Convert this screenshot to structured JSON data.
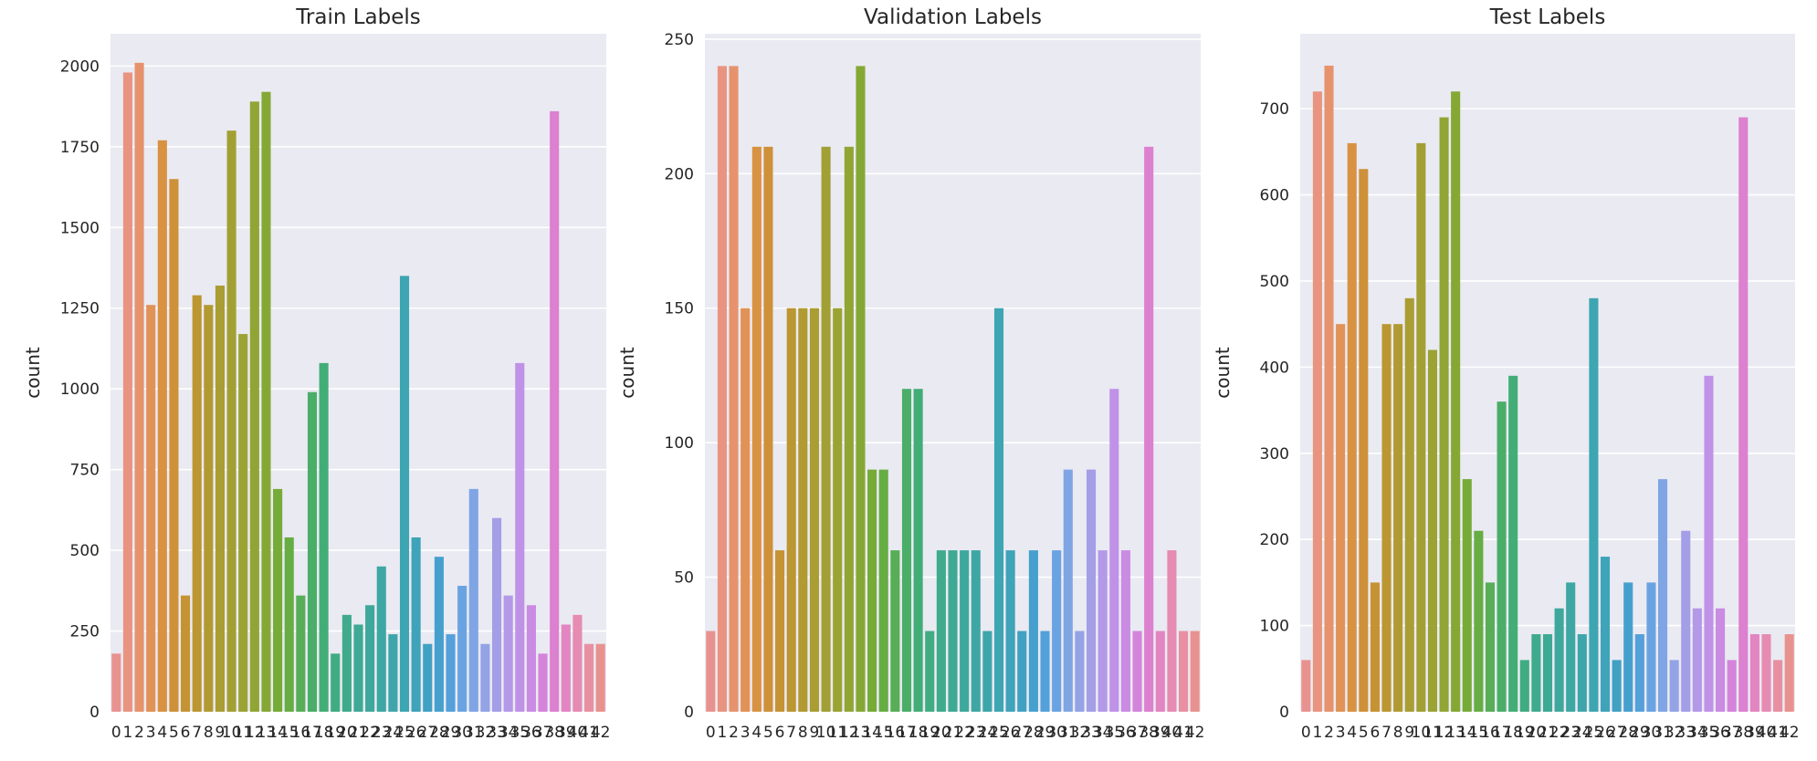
{
  "chart_data": [
    {
      "type": "bar",
      "title": "Train Labels",
      "ylabel": "count",
      "xlabel": "",
      "ylim": [
        0,
        2100
      ],
      "yticks": [
        0,
        250,
        500,
        750,
        1000,
        1250,
        1500,
        1750,
        2000
      ],
      "grid": true,
      "categories": [
        "0",
        "1",
        "2",
        "3",
        "4",
        "5",
        "6",
        "7",
        "8",
        "9",
        "10",
        "11",
        "12",
        "13",
        "14",
        "15",
        "16",
        "17",
        "18",
        "19",
        "20",
        "21",
        "22",
        "23",
        "24",
        "25",
        "26",
        "27",
        "28",
        "29",
        "30",
        "31",
        "32",
        "33",
        "34",
        "35",
        "36",
        "37",
        "38",
        "39",
        "40",
        "41",
        "42"
      ],
      "values": [
        180,
        1980,
        2010,
        1260,
        1770,
        1650,
        360,
        1290,
        1260,
        1320,
        1800,
        1170,
        1890,
        1920,
        690,
        540,
        360,
        990,
        1080,
        180,
        300,
        270,
        330,
        450,
        240,
        1350,
        540,
        210,
        480,
        240,
        390,
        690,
        210,
        600,
        360,
        1080,
        330,
        180,
        1860,
        270,
        300,
        210,
        210
      ]
    },
    {
      "type": "bar",
      "title": "Validation Labels",
      "ylabel": "count",
      "xlabel": "",
      "ylim": [
        0,
        252
      ],
      "yticks": [
        0,
        50,
        100,
        150,
        200,
        250
      ],
      "grid": true,
      "categories": [
        "0",
        "1",
        "2",
        "3",
        "4",
        "5",
        "6",
        "7",
        "8",
        "9",
        "10",
        "11",
        "12",
        "13",
        "14",
        "15",
        "16",
        "17",
        "18",
        "19",
        "20",
        "21",
        "22",
        "23",
        "24",
        "25",
        "26",
        "27",
        "28",
        "29",
        "30",
        "31",
        "32",
        "33",
        "34",
        "35",
        "36",
        "37",
        "38",
        "39",
        "40",
        "41",
        "42"
      ],
      "values": [
        30,
        240,
        240,
        150,
        210,
        210,
        60,
        150,
        150,
        150,
        210,
        150,
        210,
        240,
        90,
        90,
        60,
        120,
        120,
        30,
        60,
        60,
        60,
        60,
        30,
        150,
        60,
        30,
        60,
        30,
        60,
        90,
        30,
        90,
        60,
        120,
        60,
        30,
        210,
        30,
        60,
        30,
        30
      ]
    },
    {
      "type": "bar",
      "title": "Test Labels",
      "ylabel": "count",
      "xlabel": "",
      "ylim": [
        0,
        787
      ],
      "yticks": [
        0,
        100,
        200,
        300,
        400,
        500,
        600,
        700
      ],
      "grid": true,
      "categories": [
        "0",
        "1",
        "2",
        "3",
        "4",
        "5",
        "6",
        "7",
        "8",
        "9",
        "10",
        "11",
        "12",
        "13",
        "14",
        "15",
        "16",
        "17",
        "18",
        "19",
        "20",
        "21",
        "22",
        "23",
        "24",
        "25",
        "26",
        "27",
        "28",
        "29",
        "30",
        "31",
        "32",
        "33",
        "34",
        "35",
        "36",
        "37",
        "38",
        "39",
        "40",
        "41",
        "42"
      ],
      "values": [
        60,
        720,
        750,
        450,
        660,
        630,
        150,
        450,
        450,
        480,
        660,
        420,
        690,
        720,
        270,
        210,
        150,
        360,
        390,
        60,
        90,
        90,
        120,
        150,
        90,
        480,
        180,
        60,
        150,
        90,
        150,
        270,
        60,
        210,
        120,
        390,
        120,
        60,
        690,
        90,
        90,
        60,
        90
      ]
    }
  ],
  "palette": [
    "#e8928f",
    "#e9947c",
    "#e49260",
    "#d99242",
    "#cc9137",
    "#bf9430",
    "#b39a32",
    "#a89e33",
    "#9fa234",
    "#93a535",
    "#84a835",
    "#6fad3a",
    "#5aae52",
    "#49ae6a",
    "#40ad7c",
    "#3fab89",
    "#3ea994",
    "#3ea89e",
    "#3ea7a8",
    "#3ea5b1",
    "#3fa3bc",
    "#41a0c8",
    "#51a0d9",
    "#6ea4e3",
    "#8aa5e5",
    "#a19fe6",
    "#b598e8",
    "#c48fe6",
    "#d285de",
    "#dd80cf",
    "#e487bb",
    "#e88fa6",
    "#e8928f"
  ]
}
